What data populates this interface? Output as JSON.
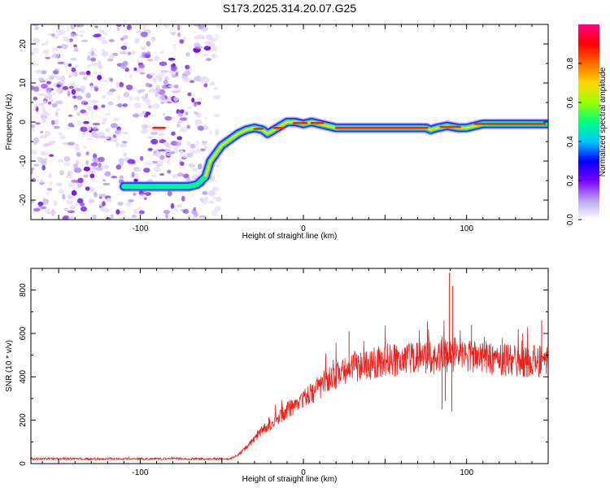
{
  "page_title": "S173.2025.314.20.07.G25",
  "chart_data": [
    {
      "type": "heatmap",
      "xlabel": "Height of straight line (km)",
      "ylabel": "Frequency (Hz)",
      "xlim": [
        -167,
        150
      ],
      "ylim": [
        -25,
        25
      ],
      "x_ticks": [
        -100,
        0,
        100
      ],
      "y_ticks": [
        -20,
        -10,
        0,
        10,
        20
      ],
      "ridge": {
        "x": [
          -110,
          -95,
          -80,
          -70,
          -65,
          -60,
          -57,
          -50,
          -45,
          -40,
          -35,
          -30,
          -25,
          -22,
          -18,
          -14,
          -10,
          -5,
          0,
          5,
          10,
          20,
          40,
          60,
          75,
          78,
          82,
          88,
          95,
          100,
          110,
          130,
          150
        ],
        "y": [
          -16.5,
          -16.5,
          -16.5,
          -16.5,
          -16,
          -14,
          -10,
          -6,
          -4.5,
          -3,
          -2,
          -1.5,
          -2,
          -3,
          -2,
          -1,
          0,
          0,
          -0.5,
          0,
          -0.5,
          -1.5,
          -1.5,
          -1.5,
          -1.5,
          -2,
          -1.5,
          -1,
          -1.5,
          -1.5,
          -0.5,
          -0.5,
          -0.5
        ]
      },
      "noise_x_range": [
        -167,
        -55
      ],
      "colorbar": {
        "label": "Normalized spectral amplitude",
        "ticks": [
          0.0,
          0.2,
          0.4,
          0.6,
          0.8
        ],
        "range": [
          0,
          1
        ],
        "colors": [
          "#ffffff",
          "#b9a0f0",
          "#7a00ff",
          "#0000ff",
          "#00c8ff",
          "#00ff80",
          "#9aff00",
          "#ffd700",
          "#ff6a00",
          "#ff0000",
          "#ff007f"
        ]
      }
    },
    {
      "type": "line",
      "xlabel": "Height of straight line (km)",
      "ylabel": "SNR (10 * v/v)",
      "xlim": [
        -167,
        150
      ],
      "ylim": [
        0,
        900
      ],
      "x_ticks": [
        -100,
        0,
        100
      ],
      "y_ticks": [
        0,
        200,
        400,
        600,
        800
      ],
      "color": "#e8231f",
      "series": [
        {
          "name": "SNR",
          "x": [
            -167,
            -150,
            -130,
            -110,
            -90,
            -70,
            -50,
            -45,
            -40,
            -35,
            -30,
            -25,
            -20,
            -15,
            -10,
            -5,
            0,
            5,
            10,
            15,
            20,
            25,
            30,
            35,
            40,
            45,
            50,
            55,
            60,
            65,
            70,
            75,
            80,
            85,
            90,
            95,
            100,
            105,
            110,
            115,
            120,
            125,
            130,
            135,
            140,
            145,
            150
          ],
          "values": [
            22,
            23,
            22,
            22,
            22,
            22,
            22,
            22,
            40,
            75,
            115,
            150,
            185,
            215,
            245,
            270,
            295,
            325,
            355,
            385,
            410,
            425,
            440,
            450,
            460,
            465,
            470,
            475,
            480,
            482,
            485,
            488,
            490,
            495,
            500,
            505,
            500,
            495,
            490,
            485,
            480,
            478,
            475,
            472,
            470,
            470,
            470
          ],
          "peaks": [
            {
              "x": 89.5,
              "y": 880
            },
            {
              "x": 91.5,
              "y": 820
            },
            {
              "x": 76,
              "y": 655
            },
            {
              "x": 146,
              "y": 660
            },
            {
              "x": 28,
              "y": 610
            },
            {
              "x": 103,
              "y": 640
            }
          ],
          "dips": [
            {
              "x": 85,
              "y": 250
            },
            {
              "x": 91,
              "y": 240
            },
            {
              "x": 87,
              "y": 290
            }
          ]
        }
      ]
    }
  ]
}
